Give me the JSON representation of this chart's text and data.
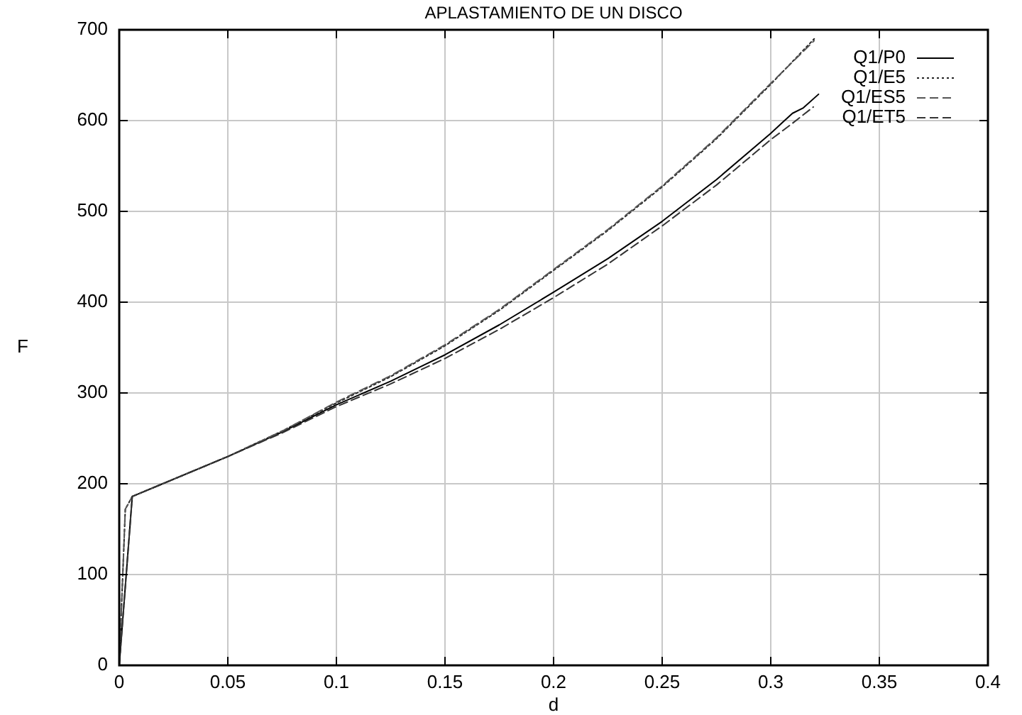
{
  "chart_data": {
    "type": "line",
    "title": "APLASTAMIENTO DE UN DISCO",
    "xlabel": "d",
    "ylabel": "F",
    "xlim": [
      0,
      0.4
    ],
    "xticks": [
      0,
      0.05,
      0.1,
      0.15,
      0.2,
      0.25,
      0.3,
      0.35,
      0.4
    ],
    "ylim": [
      0,
      700
    ],
    "yticks": [
      0,
      100,
      200,
      300,
      400,
      500,
      600,
      700
    ],
    "grid": true,
    "legend": "top right",
    "series": [
      {
        "name": "Q1/P0",
        "color": "#000000",
        "line_style": "solid",
        "x": [
          0,
          0.006,
          0.02,
          0.05,
          0.075,
          0.1,
          0.125,
          0.15,
          0.175,
          0.2,
          0.225,
          0.25,
          0.275,
          0.3,
          0.305,
          0.31,
          0.315,
          0.322
        ],
        "values": [
          0,
          186,
          200,
          230,
          257,
          287,
          313,
          342,
          375,
          411,
          448,
          489,
          535,
          586,
          597,
          608,
          614,
          629
        ]
      },
      {
        "name": "Q1/E5",
        "color": "#222222",
        "line_style": "dotted",
        "x": [
          0,
          0.0028,
          0.006,
          0.02,
          0.05,
          0.075,
          0.1,
          0.125,
          0.15,
          0.175,
          0.2,
          0.225,
          0.25,
          0.275,
          0.3,
          0.32
        ],
        "values": [
          0,
          172,
          186,
          200,
          230,
          258,
          289,
          318,
          352,
          391,
          435,
          479,
          527,
          580,
          640,
          690
        ]
      },
      {
        "name": "Q1/ES5",
        "color": "#555555",
        "line_style": "dashed",
        "x": [
          0,
          0.0028,
          0.006,
          0.02,
          0.05,
          0.075,
          0.1,
          0.125,
          0.15,
          0.175,
          0.2,
          0.225,
          0.25,
          0.275,
          0.3,
          0.32
        ],
        "values": [
          0,
          172,
          186,
          200,
          230,
          258,
          290,
          319,
          353,
          392,
          436,
          480,
          528,
          581,
          641,
          688
        ]
      },
      {
        "name": "Q1/ET5",
        "color": "#333333",
        "line_style": "dashed",
        "x": [
          0,
          0.006,
          0.02,
          0.05,
          0.075,
          0.1,
          0.125,
          0.15,
          0.175,
          0.2,
          0.225,
          0.25,
          0.275,
          0.3,
          0.31,
          0.3196
        ],
        "values": [
          0,
          186,
          200,
          230,
          256,
          285,
          310,
          338,
          370,
          405,
          442,
          484,
          529,
          579,
          597,
          615
        ]
      }
    ]
  }
}
